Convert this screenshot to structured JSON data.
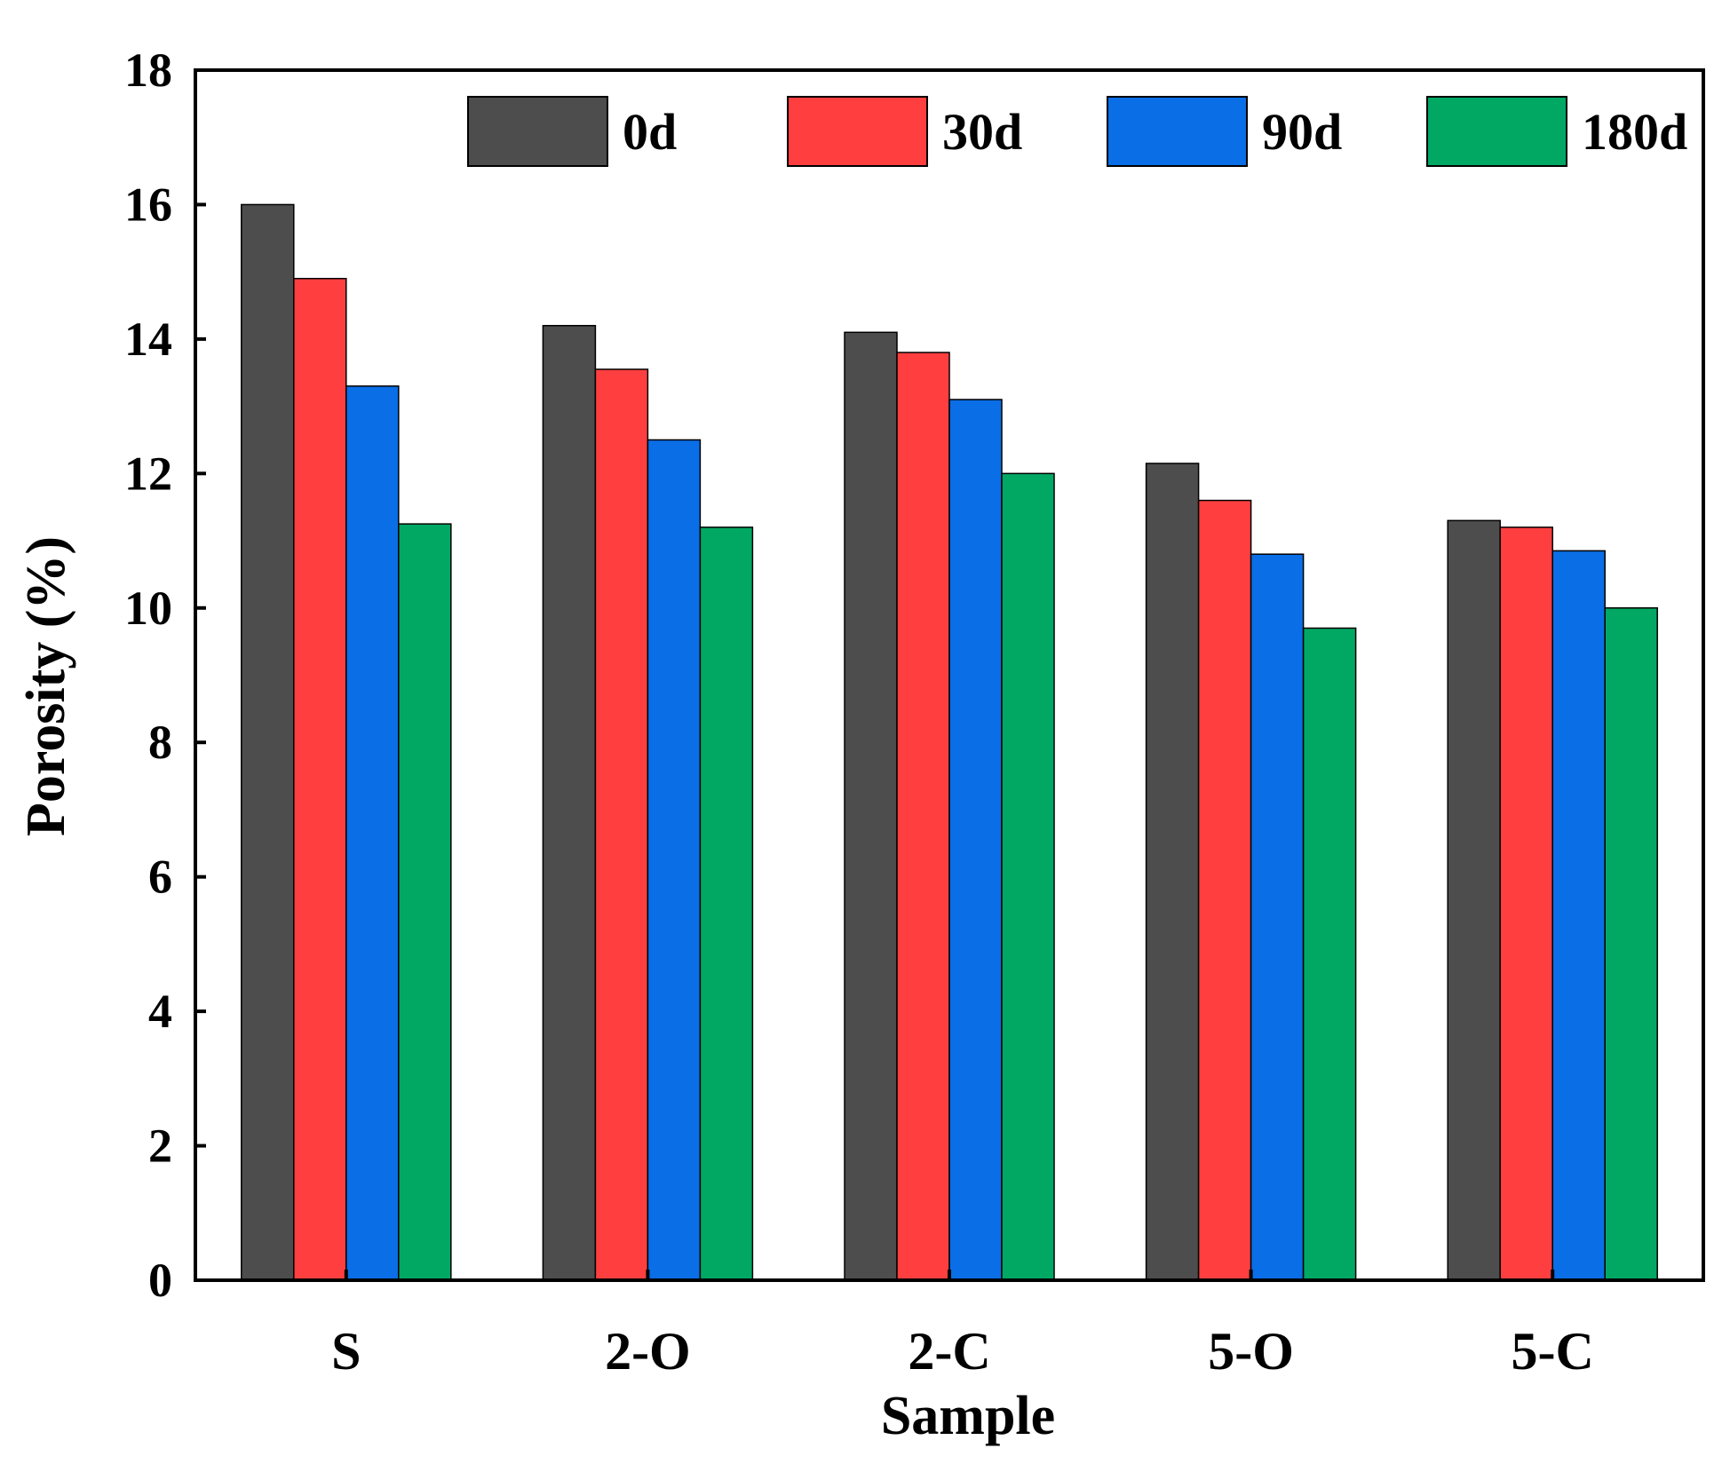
{
  "chart_data": {
    "type": "bar",
    "title": "",
    "xlabel": "Sample",
    "ylabel": "Porosity (%)",
    "ylim": [
      0,
      18
    ],
    "yticks": [
      0,
      2,
      4,
      6,
      8,
      10,
      12,
      14,
      16,
      18
    ],
    "categories": [
      "S",
      "2-O",
      "2-C",
      "5-O",
      "5-C"
    ],
    "legend_position": "top-right",
    "grid": false,
    "series": [
      {
        "name": "0d",
        "color": "#4d4d4d",
        "values": [
          16.0,
          14.2,
          14.1,
          12.15,
          11.3
        ]
      },
      {
        "name": "30d",
        "color": "#ff3f3f",
        "values": [
          14.9,
          13.55,
          13.8,
          11.6,
          11.2
        ]
      },
      {
        "name": "90d",
        "color": "#0a6ee6",
        "values": [
          13.3,
          12.5,
          13.1,
          10.8,
          10.85
        ]
      },
      {
        "name": "180d",
        "color": "#00a864",
        "values": [
          11.25,
          11.2,
          12.0,
          9.7,
          10.0
        ]
      }
    ]
  }
}
